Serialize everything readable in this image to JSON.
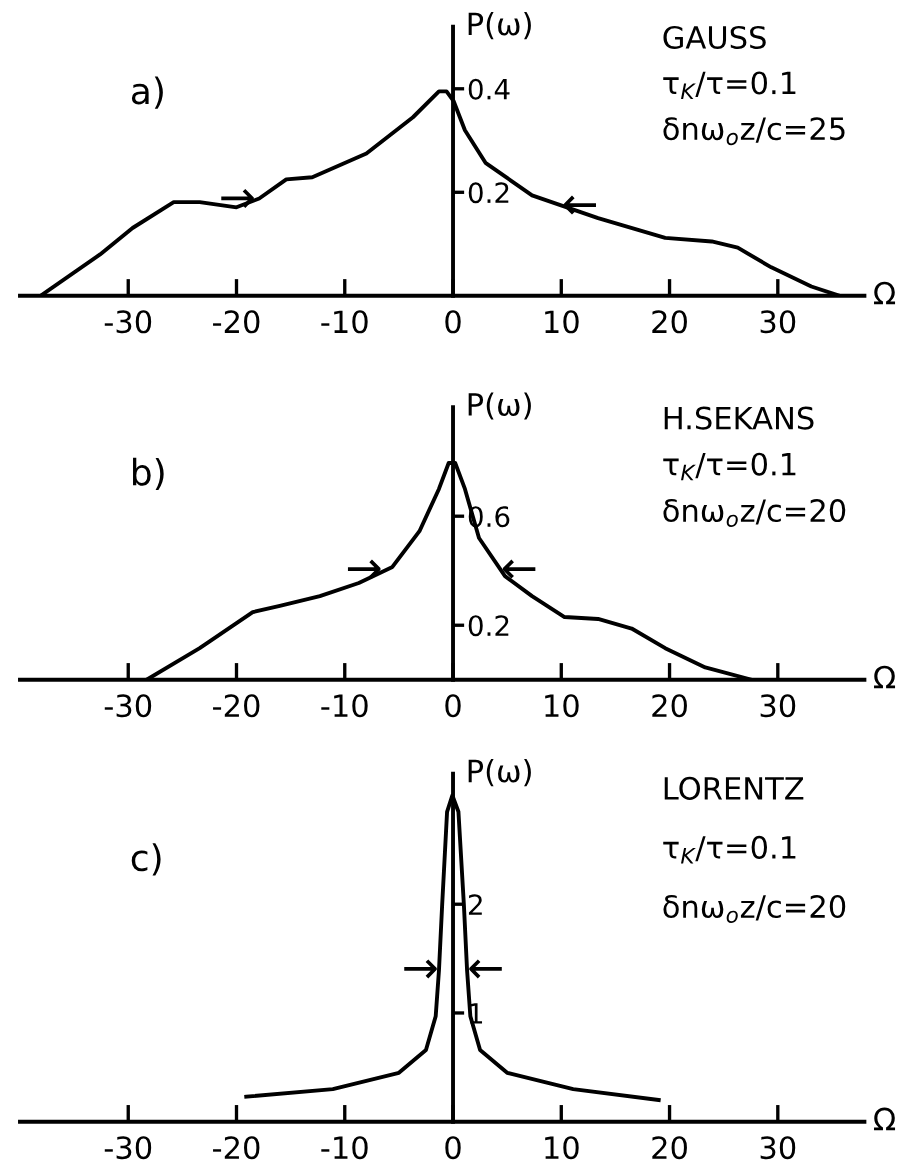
{
  "chart_data": [
    {
      "type": "line",
      "title": "a)",
      "xlabel": "Ω",
      "ylabel": "P(ω)",
      "xlim": [
        -40,
        38
      ],
      "ylim": [
        0,
        0.52
      ],
      "xticks": [
        -30,
        -20,
        -10,
        0,
        10,
        20,
        30
      ],
      "yticks": [
        0.2,
        0.4
      ],
      "grid": false,
      "legend": false,
      "series": [
        {
          "color": "#000000",
          "x": [
            -38.1,
            -32.6,
            -29.6,
            -25.8,
            -23.4,
            -20.0,
            -17.9,
            -15.4,
            -13.0,
            -8.0,
            -3.7,
            -1.3,
            -0.6,
            0.06,
            1.1,
            3.0,
            7.3,
            13.4,
            19.6,
            23.9,
            26.3,
            29.4,
            33.1,
            35.7
          ],
          "values": [
            0,
            0.08,
            0.131,
            0.181,
            0.181,
            0.171,
            0.188,
            0.225,
            0.229,
            0.275,
            0.345,
            0.395,
            0.395,
            0.376,
            0.32,
            0.257,
            0.194,
            0.15,
            0.112,
            0.105,
            0.093,
            0.055,
            0.018,
            0
          ]
        }
      ],
      "annotations": [
        "GAUSS",
        "τ$_{K}$/τ=0.1",
        "δnω$_{o}$z/c=25",
        {
          "text": "→",
          "x": -18.2,
          "y": 0.185
        },
        {
          "text": "←",
          "x": 10.0,
          "y": 0.172
        }
      ]
    },
    {
      "type": "line",
      "title": "b)",
      "xlabel": "Ω",
      "ylabel": "P(ω)",
      "xlim": [
        -40,
        38
      ],
      "ylim": [
        0,
        1.0
      ],
      "xticks": [
        -30,
        -20,
        -10,
        0,
        10,
        20,
        30
      ],
      "yticks": [
        0.2,
        0.6
      ],
      "grid": false,
      "legend": false,
      "series": [
        {
          "color": "#000000",
          "x": [
            -28.3,
            -23.4,
            -18.5,
            -16.0,
            -12.3,
            -8.7,
            -5.6,
            -3.1,
            -1.3,
            -0.4,
            0.2,
            1.1,
            2.4,
            4.8,
            7.3,
            10.3,
            13.4,
            16.5,
            19.6,
            23.3,
            27.6
          ],
          "values": [
            0,
            0.116,
            0.248,
            0.271,
            0.307,
            0.355,
            0.414,
            0.545,
            0.7,
            0.795,
            0.795,
            0.7,
            0.52,
            0.38,
            0.307,
            0.23,
            0.223,
            0.188,
            0.116,
            0.045,
            0
          ]
        }
      ],
      "annotations": [
        "H.SEKANS",
        "τ$_{K}$/τ=0.1",
        "δnω$_{o}$z/c=20",
        {
          "text": "→",
          "x": -6.5,
          "y": 0.4
        },
        {
          "text": "←",
          "x": 4.4,
          "y": 0.4
        }
      ]
    },
    {
      "type": "line",
      "title": "c)",
      "xlabel": "Ω",
      "ylabel": "P(ω)",
      "xlim": [
        -40,
        38
      ],
      "ylim": [
        0,
        3.2
      ],
      "xticks": [
        -30,
        -20,
        -10,
        0,
        10,
        20,
        30
      ],
      "yticks": [
        1,
        2
      ],
      "grid": false,
      "legend": false,
      "series": [
        {
          "color": "#000000",
          "x": [
            -19.1,
            -11.1,
            -5.0,
            -2.5,
            -1.6,
            -1.3,
            -1.0,
            -0.55,
            -0.06,
            0.5,
            1.0,
            1.3,
            1.6,
            2.5,
            5.0,
            11.1,
            19.0
          ],
          "values": [
            0.23,
            0.3,
            0.45,
            0.66,
            0.97,
            1.39,
            2.0,
            2.85,
            3.0,
            2.85,
            2.0,
            1.39,
            0.97,
            0.66,
            0.45,
            0.3,
            0.2
          ]
        }
      ],
      "annotations": [
        "LORENTZ",
        "τ$_{K}$/τ=0.1",
        "δnω$_{o}$z/c=20",
        {
          "text": "→",
          "x": -1.3,
          "y": 1.39
        },
        {
          "text": "←",
          "x": 1.3,
          "y": 1.39
        }
      ]
    }
  ]
}
